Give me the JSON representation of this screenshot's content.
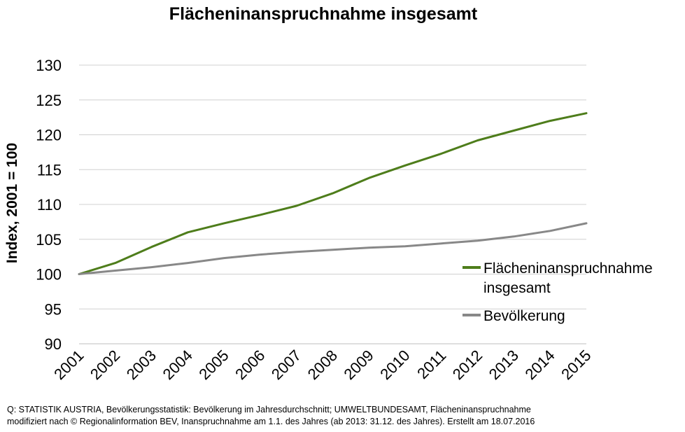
{
  "chart_data": {
    "type": "line",
    "title": "Flächeninanspruchnahme insgesamt",
    "ylabel": "Index, 2001 = 100",
    "xlabel": "",
    "ylim": [
      90,
      130
    ],
    "yticks": [
      90,
      95,
      100,
      105,
      110,
      115,
      120,
      125,
      130
    ],
    "grid": true,
    "legend_position": "right",
    "x": [
      "2001",
      "2002",
      "2003",
      "2004",
      "2005",
      "2006",
      "2007",
      "2008",
      "2009",
      "2010",
      "2011",
      "2012",
      "2013",
      "2014",
      "2015"
    ],
    "series": [
      {
        "name": "Flächeninanspruchnahme insgesamt",
        "legend_lines": [
          "Flächeninanspruchnahme",
          "insgesamt"
        ],
        "color": "#4e7d1b",
        "values": [
          100.0,
          101.6,
          103.9,
          106.0,
          107.3,
          108.5,
          109.8,
          111.6,
          113.8,
          115.6,
          117.3,
          119.2,
          120.6,
          122.0,
          123.1
        ]
      },
      {
        "name": "Bevölkerung",
        "legend_lines": [
          "Bevölkerung"
        ],
        "color": "#888888",
        "values": [
          100.0,
          100.5,
          101.0,
          101.6,
          102.3,
          102.8,
          103.2,
          103.5,
          103.8,
          104.0,
          104.4,
          104.8,
          105.4,
          106.2,
          107.3
        ]
      }
    ]
  },
  "source": {
    "line1": "Q:  STATISTIK AUSTRIA, Bevölkerungsstatistik: Bevölkerung  im Jahresdurchschnitt; UMWELTBUNDESAMT, Flächeninanspruchnahme",
    "line2": "modifiziert nach © Regionalinformation BEV, Inanspruchnahme am 1.1. des Jahres (ab 2013: 31.12. des Jahres). Erstellt am 18.07.2016"
  }
}
